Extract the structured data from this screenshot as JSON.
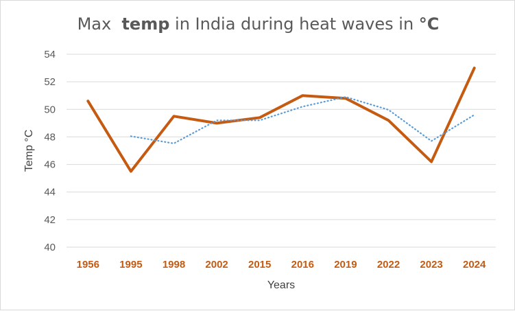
{
  "chart_data": {
    "type": "line",
    "title": {
      "parts": [
        {
          "text": "Max  ",
          "bold": false
        },
        {
          "text": "temp",
          "bold": true
        },
        {
          "text": " in India during heat waves in ",
          "bold": false
        },
        {
          "text": "°C",
          "bold": true
        }
      ]
    },
    "xlabel": "Years",
    "ylabel": "Temp °C",
    "categories": [
      "1956",
      "1995",
      "1998",
      "2002",
      "2015",
      "2016",
      "2019",
      "2022",
      "2023",
      "2024"
    ],
    "ylim": [
      40,
      54
    ],
    "yticks": [
      40,
      42,
      44,
      46,
      48,
      50,
      52,
      54
    ],
    "grid": true,
    "legend": "none",
    "series": [
      {
        "values": [
          50.6,
          45.5,
          49.5,
          49.0,
          49.4,
          51.0,
          50.8,
          49.2,
          46.2,
          53.0
        ],
        "color": "#c55a11",
        "style": "solid"
      },
      {
        "values": [
          null,
          48.05,
          47.53,
          49.2,
          49.2,
          50.2,
          50.9,
          49.97,
          47.7,
          49.6
        ],
        "color": "#5b9bd5",
        "style": "dotted"
      }
    ],
    "colors": {
      "tick_label_x": "#c55a11",
      "tick_label_y": "#595959",
      "axis_label": "#404040",
      "grid": "#d9d9d9"
    }
  }
}
